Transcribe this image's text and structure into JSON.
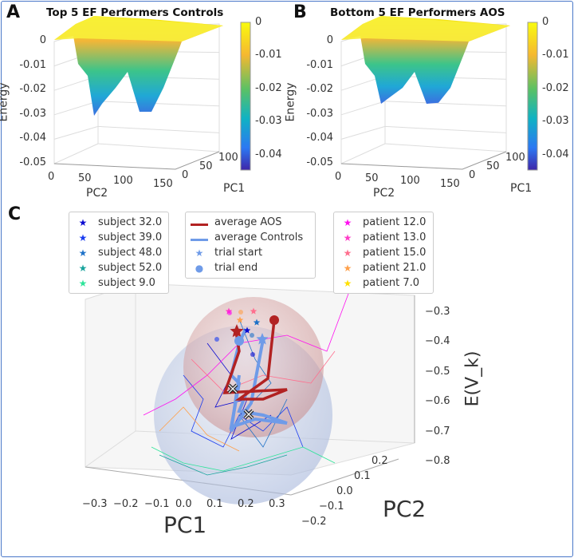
{
  "chart_data": [
    {
      "type": "surface",
      "panel": "A",
      "title": "Top 5 EF Performers Controls",
      "xlabel": "PC2",
      "ylabel": "PC1",
      "zlabel": "Energy",
      "xticks": [
        "0",
        "50",
        "100",
        "150"
      ],
      "yticks": [
        "0",
        "50",
        "100"
      ],
      "zticks": [
        "0",
        "-0.01",
        "-0.02",
        "-0.03",
        "-0.04",
        "-0.05"
      ],
      "zlim": [
        -0.05,
        0
      ],
      "colorbar_ticks": [
        "0",
        "-0.01",
        "-0.02",
        "-0.03",
        "-0.04"
      ],
      "colorbar_range": [
        -0.045,
        0
      ],
      "min_energy": -0.03
    },
    {
      "type": "surface",
      "panel": "B",
      "title": "Bottom 5 EF Performers AOS",
      "xlabel": "PC2",
      "ylabel": "PC1",
      "zlabel": "Energy",
      "xticks": [
        "0",
        "50",
        "100",
        "150"
      ],
      "yticks": [
        "0",
        "50",
        "100"
      ],
      "zticks": [
        "0",
        "-0.01",
        "-0.02",
        "-0.03",
        "-0.04",
        "-0.05"
      ],
      "zlim": [
        -0.05,
        0
      ],
      "colorbar_ticks": [
        "0",
        "-0.01",
        "-0.02",
        "-0.03",
        "-0.04"
      ],
      "colorbar_range": [
        -0.045,
        0
      ],
      "min_energy": -0.024
    },
    {
      "type": "line3d",
      "panel": "C",
      "xlabel": "PC1",
      "ylabel": "PC2",
      "zlabel": "E(V_k)",
      "xticks": [
        "−0.3",
        "−0.2",
        "−0.1",
        "0.0",
        "0.1",
        "0.2",
        "0.3"
      ],
      "yticks": [
        "−0.2",
        "−0.1",
        "0.0",
        "0.1",
        "0.2"
      ],
      "zticks": [
        "−0.3",
        "−0.4",
        "−0.5",
        "−0.6",
        "−0.7",
        "−0.8"
      ],
      "legend_subjects": [
        {
          "label": "subject 32.0",
          "color": "#0a0ad0"
        },
        {
          "label": "subject 39.0",
          "color": "#1a3cf0"
        },
        {
          "label": "subject 48.0",
          "color": "#1f72c8"
        },
        {
          "label": "subject 52.0",
          "color": "#18a39c"
        },
        {
          "label": "subject 9.0",
          "color": "#2ee49a"
        }
      ],
      "legend_average": [
        {
          "label": "average AOS",
          "color": "#b22222",
          "kind": "line"
        },
        {
          "label": "average Controls",
          "color": "#6f9be8",
          "kind": "line"
        },
        {
          "label": "trial start",
          "color": "#6f9be8",
          "kind": "star"
        },
        {
          "label": "trial end",
          "color": "#6f9be8",
          "kind": "dot"
        }
      ],
      "legend_patients": [
        {
          "label": "patient 12.0",
          "color": "#ff10f0"
        },
        {
          "label": "patient 13.0",
          "color": "#ff3cc8"
        },
        {
          "label": "patient 15.0",
          "color": "#ff6f8e"
        },
        {
          "label": "patient 21.0",
          "color": "#ffa04a"
        },
        {
          "label": "patient 7.0",
          "color": "#ffe000"
        }
      ]
    }
  ]
}
